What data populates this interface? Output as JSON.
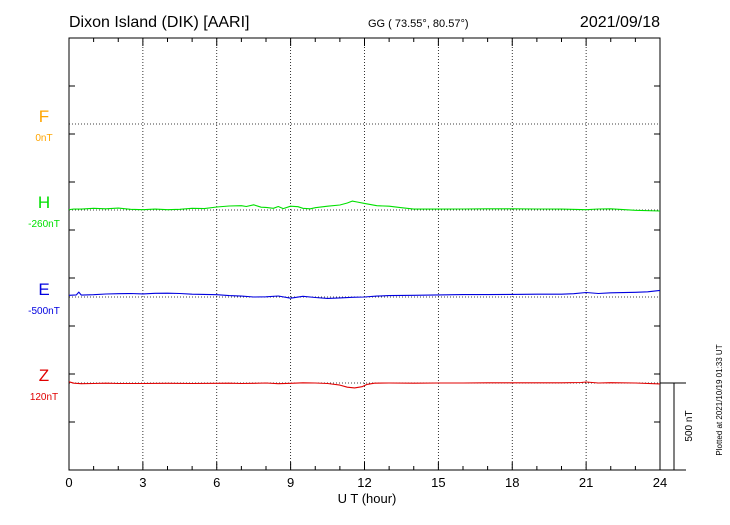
{
  "header": {
    "station": "Dixon Island (DIK)  [AARI]",
    "coords": "GG ( 73.55°,  80.57°)",
    "date": "2021/09/18"
  },
  "footer": {
    "plotted": "Plotted at 2021/10/19 01:33 UT",
    "scale": "500 nT"
  },
  "chart_data": {
    "type": "line",
    "title": "Dixon Island (DIK)  [AARI]",
    "xlabel": "U T (hour)",
    "xlim": [
      0,
      24
    ],
    "xticks": [
      "0",
      "3",
      "6",
      "9",
      "12",
      "15",
      "18",
      "21",
      "24"
    ],
    "grid": true,
    "scale_bar_nT": 500,
    "series": [
      {
        "name": "F",
        "baseline": "0nT",
        "color": "#ffa500",
        "points": []
      },
      {
        "name": "H",
        "baseline": "-260nT",
        "color": "#00e000",
        "points": [
          [
            0,
            -258
          ],
          [
            0.2,
            -254
          ],
          [
            0.5,
            -255
          ],
          [
            1,
            -250
          ],
          [
            1.5,
            -253
          ],
          [
            2,
            -249
          ],
          [
            2.5,
            -256
          ],
          [
            3,
            -258
          ],
          [
            3.5,
            -255
          ],
          [
            4,
            -258
          ],
          [
            4.5,
            -256
          ],
          [
            5,
            -250
          ],
          [
            5.5,
            -252
          ],
          [
            6,
            -243
          ],
          [
            6.5,
            -237
          ],
          [
            7,
            -235
          ],
          [
            7.2,
            -240
          ],
          [
            7.5,
            -230
          ],
          [
            7.8,
            -244
          ],
          [
            8,
            -245
          ],
          [
            8.3,
            -250
          ],
          [
            8.5,
            -240
          ],
          [
            8.7,
            -252
          ],
          [
            9,
            -238
          ],
          [
            9.3,
            -241
          ],
          [
            9.5,
            -250
          ],
          [
            9.8,
            -253
          ],
          [
            10,
            -247
          ],
          [
            10.5,
            -238
          ],
          [
            11,
            -231
          ],
          [
            11.3,
            -220
          ],
          [
            11.5,
            -209
          ],
          [
            11.7,
            -214
          ],
          [
            12,
            -222
          ],
          [
            12.5,
            -235
          ],
          [
            13,
            -238
          ],
          [
            13.5,
            -247
          ],
          [
            14,
            -255
          ],
          [
            15,
            -255
          ],
          [
            16,
            -254
          ],
          [
            17,
            -253
          ],
          [
            18,
            -253
          ],
          [
            19,
            -254
          ],
          [
            20,
            -255
          ],
          [
            21,
            -258
          ],
          [
            21.5,
            -254
          ],
          [
            22,
            -253
          ],
          [
            23,
            -262
          ],
          [
            24,
            -266
          ]
        ]
      },
      {
        "name": "E",
        "baseline": "-500nT",
        "color": "#0000e0",
        "points": [
          [
            0,
            -490
          ],
          [
            0.3,
            -488
          ],
          [
            0.4,
            -472
          ],
          [
            0.5,
            -489
          ],
          [
            1,
            -487
          ],
          [
            1.5,
            -483
          ],
          [
            2,
            -481
          ],
          [
            2.5,
            -480
          ],
          [
            3,
            -482
          ],
          [
            3.5,
            -479
          ],
          [
            4,
            -478
          ],
          [
            4.5,
            -480
          ],
          [
            5,
            -484
          ],
          [
            5.5,
            -485
          ],
          [
            6,
            -487
          ],
          [
            6.5,
            -492
          ],
          [
            7,
            -495
          ],
          [
            7.5,
            -500
          ],
          [
            8,
            -499
          ],
          [
            8.5,
            -494
          ],
          [
            9,
            -507
          ],
          [
            9.5,
            -496
          ],
          [
            10,
            -503
          ],
          [
            10.5,
            -508
          ],
          [
            11,
            -505
          ],
          [
            11.5,
            -502
          ],
          [
            12,
            -500
          ],
          [
            12.5,
            -495
          ],
          [
            13,
            -492
          ],
          [
            14,
            -490
          ],
          [
            15,
            -488
          ],
          [
            16,
            -486
          ],
          [
            17,
            -486
          ],
          [
            18,
            -485
          ],
          [
            19,
            -484
          ],
          [
            20,
            -484
          ],
          [
            20.5,
            -481
          ],
          [
            21,
            -474
          ],
          [
            21.5,
            -480
          ],
          [
            22,
            -476
          ],
          [
            23,
            -473
          ],
          [
            23.5,
            -470
          ],
          [
            24,
            -462
          ]
        ]
      },
      {
        "name": "Z",
        "baseline": "120nT",
        "color": "#e00000",
        "points": [
          [
            0,
            127
          ],
          [
            0.2,
            119
          ],
          [
            0.5,
            116
          ],
          [
            1,
            117
          ],
          [
            1.5,
            119
          ],
          [
            2,
            117
          ],
          [
            3,
            117
          ],
          [
            4,
            118
          ],
          [
            5,
            117
          ],
          [
            6,
            118
          ],
          [
            6.5,
            119
          ],
          [
            7,
            117
          ],
          [
            7.5,
            118
          ],
          [
            8,
            120
          ],
          [
            8.5,
            116
          ],
          [
            9,
            118
          ],
          [
            9.5,
            121
          ],
          [
            10,
            120
          ],
          [
            10.5,
            117
          ],
          [
            11,
            108
          ],
          [
            11.3,
            96
          ],
          [
            11.6,
            92
          ],
          [
            11.9,
            99
          ],
          [
            12.1,
            112
          ],
          [
            12.4,
            119
          ],
          [
            13,
            120
          ],
          [
            14,
            119
          ],
          [
            15,
            120
          ],
          [
            16,
            120
          ],
          [
            17,
            121
          ],
          [
            18,
            121
          ],
          [
            19,
            121
          ],
          [
            20,
            121
          ],
          [
            20.8,
            123
          ],
          [
            21,
            126
          ],
          [
            21.5,
            120
          ],
          [
            22,
            122
          ],
          [
            23,
            120
          ],
          [
            24,
            115
          ]
        ]
      }
    ]
  }
}
